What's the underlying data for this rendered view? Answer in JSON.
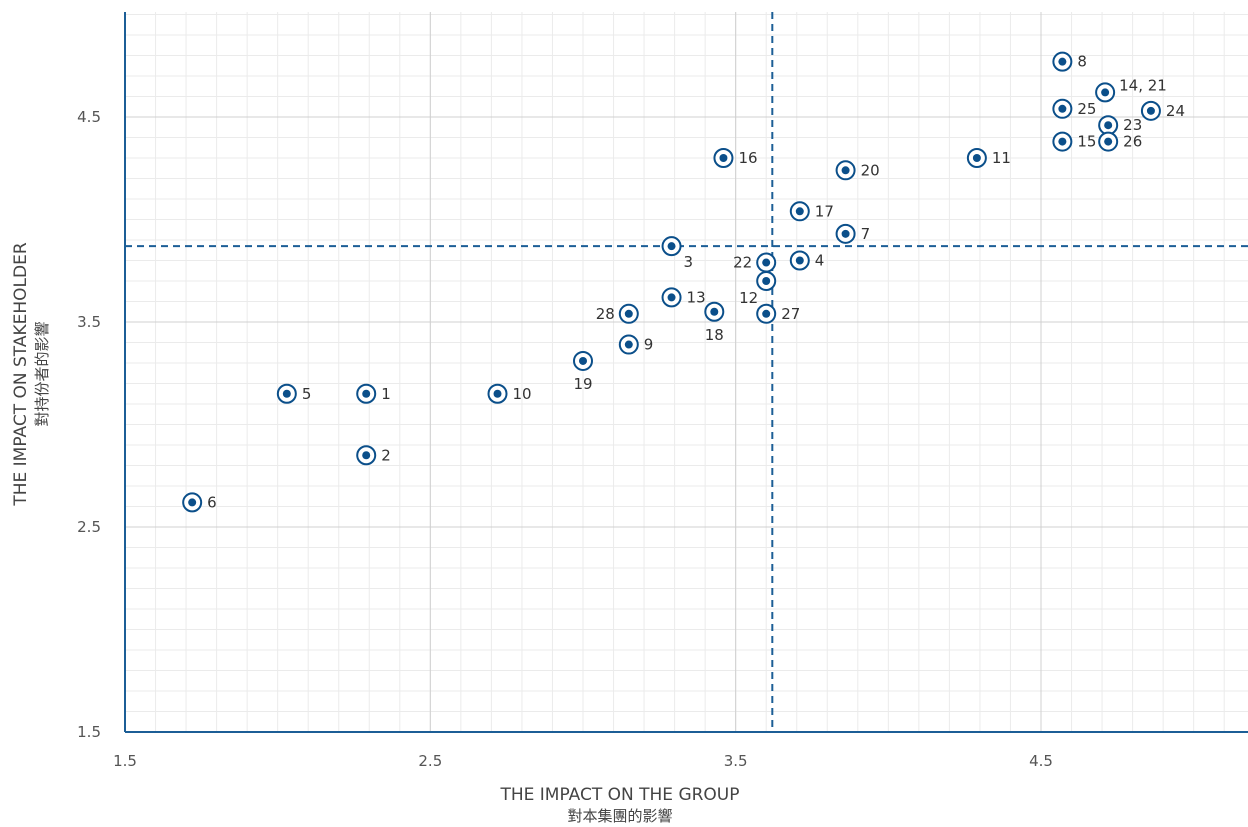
{
  "chart_data": {
    "type": "scatter",
    "xlabel": "THE IMPACT ON THE GROUP",
    "xlabel_sub": "對本集團的影響",
    "ylabel": "THE IMPACT ON STAKEHOLDER",
    "ylabel_sub": "對持份者的影響",
    "xlim": [
      1.5,
      5.2
    ],
    "ylim": [
      1.5,
      5.0
    ],
    "xticks": [
      "1.5",
      "2.5",
      "3.5",
      "4.5"
    ],
    "yticks": [
      "1.5",
      "2.5",
      "3.5",
      "4.5"
    ],
    "grid": true,
    "reference_lines": {
      "x": 3.62,
      "y": 3.87
    },
    "points": [
      {
        "label": "1",
        "x": 2.29,
        "y": 3.15,
        "label_pos": "right"
      },
      {
        "label": "2",
        "x": 2.29,
        "y": 2.85,
        "label_pos": "right"
      },
      {
        "label": "3",
        "x": 3.29,
        "y": 3.87,
        "label_pos": "below-right"
      },
      {
        "label": "4",
        "x": 3.71,
        "y": 3.8,
        "label_pos": "right"
      },
      {
        "label": "5",
        "x": 2.03,
        "y": 3.15,
        "label_pos": "right"
      },
      {
        "label": "6",
        "x": 1.72,
        "y": 2.62,
        "label_pos": "right"
      },
      {
        "label": "7",
        "x": 3.86,
        "y": 3.93,
        "label_pos": "right"
      },
      {
        "label": "8",
        "x": 4.57,
        "y": 4.77,
        "label_pos": "right"
      },
      {
        "label": "9",
        "x": 3.15,
        "y": 3.39,
        "label_pos": "right"
      },
      {
        "label": "10",
        "x": 2.72,
        "y": 3.15,
        "label_pos": "right"
      },
      {
        "label": "11",
        "x": 4.29,
        "y": 4.3,
        "label_pos": "right"
      },
      {
        "label": "12",
        "x": 3.6,
        "y": 3.7,
        "label_pos": "below-left"
      },
      {
        "label": "13",
        "x": 3.29,
        "y": 3.62,
        "label_pos": "right"
      },
      {
        "label": "14, 21",
        "x": 4.71,
        "y": 4.62,
        "label_pos": "upper-right"
      },
      {
        "label": "15",
        "x": 4.57,
        "y": 4.38,
        "label_pos": "right"
      },
      {
        "label": "16",
        "x": 3.46,
        "y": 4.3,
        "label_pos": "right"
      },
      {
        "label": "17",
        "x": 3.71,
        "y": 4.04,
        "label_pos": "right"
      },
      {
        "label": "18",
        "x": 3.43,
        "y": 3.55,
        "label_pos": "below"
      },
      {
        "label": "19",
        "x": 3.0,
        "y": 3.31,
        "label_pos": "below"
      },
      {
        "label": "20",
        "x": 3.86,
        "y": 4.24,
        "label_pos": "right"
      },
      {
        "label": "22",
        "x": 3.6,
        "y": 3.79,
        "label_pos": "left"
      },
      {
        "label": "23",
        "x": 4.72,
        "y": 4.46,
        "label_pos": "right"
      },
      {
        "label": "24",
        "x": 4.86,
        "y": 4.53,
        "label_pos": "right"
      },
      {
        "label": "25",
        "x": 4.57,
        "y": 4.54,
        "label_pos": "right"
      },
      {
        "label": "26",
        "x": 4.72,
        "y": 4.38,
        "label_pos": "right"
      },
      {
        "label": "27",
        "x": 3.6,
        "y": 3.54,
        "label_pos": "right"
      },
      {
        "label": "28",
        "x": 3.15,
        "y": 3.54,
        "label_pos": "left"
      }
    ],
    "colors": {
      "point": "#0b4f8a",
      "reference_line": "#1c5e96",
      "axis": "#1c5e96",
      "major_grid": "#d0d0d0",
      "minor_grid": "#ebebeb"
    }
  }
}
